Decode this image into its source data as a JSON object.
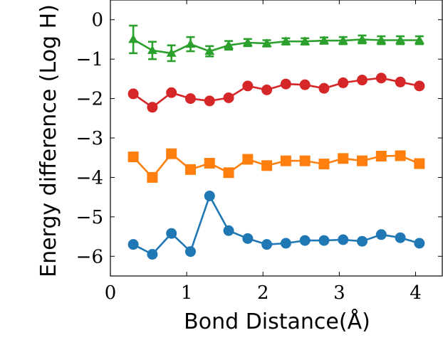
{
  "chart_data": {
    "type": "line",
    "title": "",
    "xlabel": "Bond Distance(Å)",
    "ylabel": "Energy difference (Log H)",
    "xlim": [
      0,
      4.35
    ],
    "ylim": [
      -6.5,
      0.5
    ],
    "xticks": [
      0,
      1,
      2,
      3,
      4
    ],
    "xtick_labels": [
      "0",
      "1",
      "2",
      "3",
      "4"
    ],
    "yticks": [
      0,
      -1,
      -2,
      -3,
      -4,
      -5,
      -6
    ],
    "ytick_labels": [
      "0",
      "−1",
      "−2",
      "−3",
      "−4",
      "−5",
      "−6"
    ],
    "grid": false,
    "x": [
      0.3,
      0.55,
      0.8,
      1.05,
      1.3,
      1.55,
      1.8,
      2.05,
      2.3,
      2.55,
      2.8,
      3.05,
      3.3,
      3.55,
      3.8,
      4.05
    ],
    "series": [
      {
        "color": "#2ca02c",
        "marker": "triangle",
        "values": [
          -0.5,
          -0.78,
          -0.85,
          -0.62,
          -0.8,
          -0.65,
          -0.58,
          -0.6,
          -0.55,
          -0.55,
          -0.53,
          -0.53,
          -0.5,
          -0.52,
          -0.52,
          -0.52
        ],
        "error": [
          0.35,
          0.22,
          0.2,
          0.18,
          0.13,
          0.11,
          0.09,
          0.08,
          0.08,
          0.08,
          0.08,
          0.09,
          0.1,
          0.1,
          0.1,
          0.1
        ]
      },
      {
        "color": "#d62728",
        "marker": "circle",
        "values": [
          -1.88,
          -2.22,
          -1.85,
          -2.0,
          -2.06,
          -1.98,
          -1.68,
          -1.78,
          -1.63,
          -1.65,
          -1.74,
          -1.6,
          -1.53,
          -1.48,
          -1.58,
          -1.68
        ]
      },
      {
        "color": "#ff7f0e",
        "marker": "square",
        "values": [
          -3.48,
          -4.0,
          -3.4,
          -3.8,
          -3.64,
          -3.88,
          -3.54,
          -3.7,
          -3.58,
          -3.58,
          -3.66,
          -3.52,
          -3.58,
          -3.46,
          -3.45,
          -3.65
        ]
      },
      {
        "color": "#1f77b4",
        "marker": "circle",
        "values": [
          -5.7,
          -5.95,
          -5.42,
          -5.88,
          -4.47,
          -5.35,
          -5.55,
          -5.7,
          -5.67,
          -5.6,
          -5.6,
          -5.58,
          -5.62,
          -5.45,
          -5.53,
          -5.67
        ]
      }
    ]
  }
}
